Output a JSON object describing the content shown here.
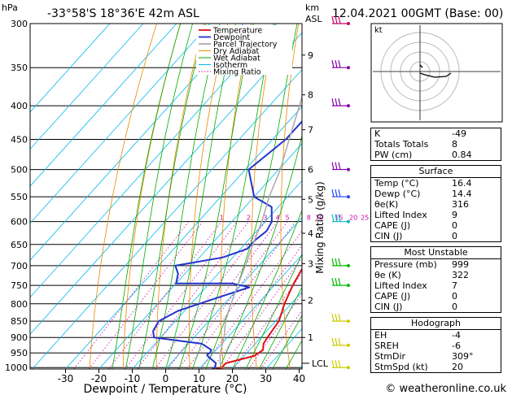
{
  "header": {
    "hpa_label": "hPa",
    "location": "-33°58'S  18°36'E  42m  ASL",
    "km_label": "km",
    "asl_label": "ASL",
    "datetime": "12.04.2021  00GMT  (Base: 00)"
  },
  "legend": [
    "Temperature",
    "Dewpoint",
    "Parcel Trajectory",
    "Dry Adiabat",
    "Wet Adiabat",
    "Isotherm",
    "Mixing Ratio"
  ],
  "colors": {
    "temperature": "#dd1111",
    "dewpoint": "#2233cc",
    "parcel": "#aaaaaa",
    "dry_adiabat": "#ee8800",
    "wet_adiabat": "#00aa00",
    "isotherm": "#00bbee",
    "mixing_ratio": "#cc00aa"
  },
  "chart_data": {
    "type": "line",
    "title": "",
    "xlabel": "Dewpoint / Temperature (°C)",
    "ylabel": "hPa",
    "x_ticks": [
      "-30",
      "-20",
      "-10",
      "0",
      "10",
      "20",
      "30",
      "40"
    ],
    "pressure_levels": [
      "300",
      "350",
      "400",
      "450",
      "500",
      "550",
      "600",
      "650",
      "700",
      "750",
      "800",
      "850",
      "900",
      "950",
      "1000"
    ],
    "km_ticks": [
      "1",
      "2",
      "3",
      "4",
      "5",
      "6",
      "7",
      "8",
      "9"
    ],
    "km_pressures": [
      900,
      790,
      695,
      625,
      555,
      500,
      435,
      385,
      335
    ],
    "lcl_label": "LCL",
    "lcl_pressure": 985,
    "mixing_ratio_label": "Mixing Ratio (g/kg)",
    "mixing_ratio_values": [
      "1",
      "2",
      "3",
      "4",
      "5",
      "8",
      "10",
      "15",
      "20",
      "25"
    ],
    "series": [
      {
        "name": "Temperature",
        "points": [
          [
            1005,
            15
          ],
          [
            1000,
            16.4
          ],
          [
            985,
            16.5
          ],
          [
            960,
            23
          ],
          [
            940,
            24
          ],
          [
            920,
            22.5
          ],
          [
            900,
            22
          ],
          [
            850,
            21
          ],
          [
            800,
            18
          ],
          [
            750,
            15.5
          ],
          [
            700,
            13.5
          ],
          [
            650,
            11
          ],
          [
            600,
            8.5
          ],
          [
            550,
            7
          ],
          [
            500,
            4.5
          ],
          [
            450,
            0
          ],
          [
            400,
            -5
          ],
          [
            350,
            -10.5
          ],
          [
            300,
            -16
          ]
        ]
      },
      {
        "name": "Dewpoint",
        "points": [
          [
            1005,
            14
          ],
          [
            1000,
            14.4
          ],
          [
            985,
            13.5
          ],
          [
            960,
            9
          ],
          [
            955,
            8.5
          ],
          [
            950,
            9
          ],
          [
            940,
            8.5
          ],
          [
            920,
            4
          ],
          [
            900,
            -12
          ],
          [
            880,
            -14
          ],
          [
            850,
            -15
          ],
          [
            820,
            -12
          ],
          [
            780,
            -3
          ],
          [
            755,
            3
          ],
          [
            745,
            -3
          ],
          [
            745,
            -20
          ],
          [
            720,
            -22
          ],
          [
            700,
            -25
          ],
          [
            680,
            -13
          ],
          [
            660,
            -8
          ],
          [
            640,
            -8
          ],
          [
            620,
            -7
          ],
          [
            600,
            -8
          ],
          [
            570,
            -12
          ],
          [
            550,
            -20
          ],
          [
            500,
            -29
          ],
          [
            450,
            -26
          ],
          [
            400,
            -26
          ],
          [
            350,
            -18
          ],
          [
            320,
            -11
          ],
          [
            310,
            -10
          ],
          [
            305,
            -10
          ],
          [
            300,
            -11
          ]
        ]
      },
      {
        "name": "Parcel Trajectory",
        "points": [
          [
            1000,
            16.4
          ],
          [
            985,
            14.8
          ],
          [
            950,
            12
          ],
          [
            900,
            9
          ],
          [
            850,
            5
          ],
          [
            800,
            2
          ],
          [
            750,
            -1
          ],
          [
            700,
            -4
          ],
          [
            650,
            -7.5
          ],
          [
            600,
            -11
          ],
          [
            550,
            -15.5
          ],
          [
            500,
            -19.5
          ],
          [
            450,
            -25
          ],
          [
            400,
            -31
          ],
          [
            350,
            -38
          ],
          [
            300,
            -47
          ]
        ]
      }
    ],
    "wind_barbs_pressures": [
      1000,
      925,
      850,
      750,
      700,
      600,
      550,
      500,
      400,
      350,
      300
    ]
  },
  "indices": [
    {
      "label": "K",
      "value": "-49"
    },
    {
      "label": "Totals Totals",
      "value": "8"
    },
    {
      "label": "PW (cm)",
      "value": "0.84"
    }
  ],
  "surface": {
    "title": "Surface",
    "rows": [
      {
        "label": "Temp (°C)",
        "value": "16.4"
      },
      {
        "label": "Dewp (°C)",
        "value": "14.4"
      },
      {
        "label": "θe(K)",
        "value": "316"
      },
      {
        "label": "Lifted Index",
        "value": "9"
      },
      {
        "label": "CAPE (J)",
        "value": "0"
      },
      {
        "label": "CIN (J)",
        "value": "0"
      }
    ]
  },
  "most_unstable": {
    "title": "Most Unstable",
    "rows": [
      {
        "label": "Pressure (mb)",
        "value": "999"
      },
      {
        "label": "θe (K)",
        "value": "322"
      },
      {
        "label": "Lifted Index",
        "value": "7"
      },
      {
        "label": "CAPE (J)",
        "value": "0"
      },
      {
        "label": "CIN (J)",
        "value": "0"
      }
    ]
  },
  "hodograph": {
    "title": "Hodograph",
    "kt_label": "kt",
    "rows": [
      {
        "label": "EH",
        "value": "-4"
      },
      {
        "label": "SREH",
        "value": "-6"
      },
      {
        "label": "StmDir",
        "value": "309°"
      },
      {
        "label": "StmSpd (kt)",
        "value": "20"
      }
    ]
  },
  "footer": {
    "credit": "© weatheronline.co.uk"
  }
}
